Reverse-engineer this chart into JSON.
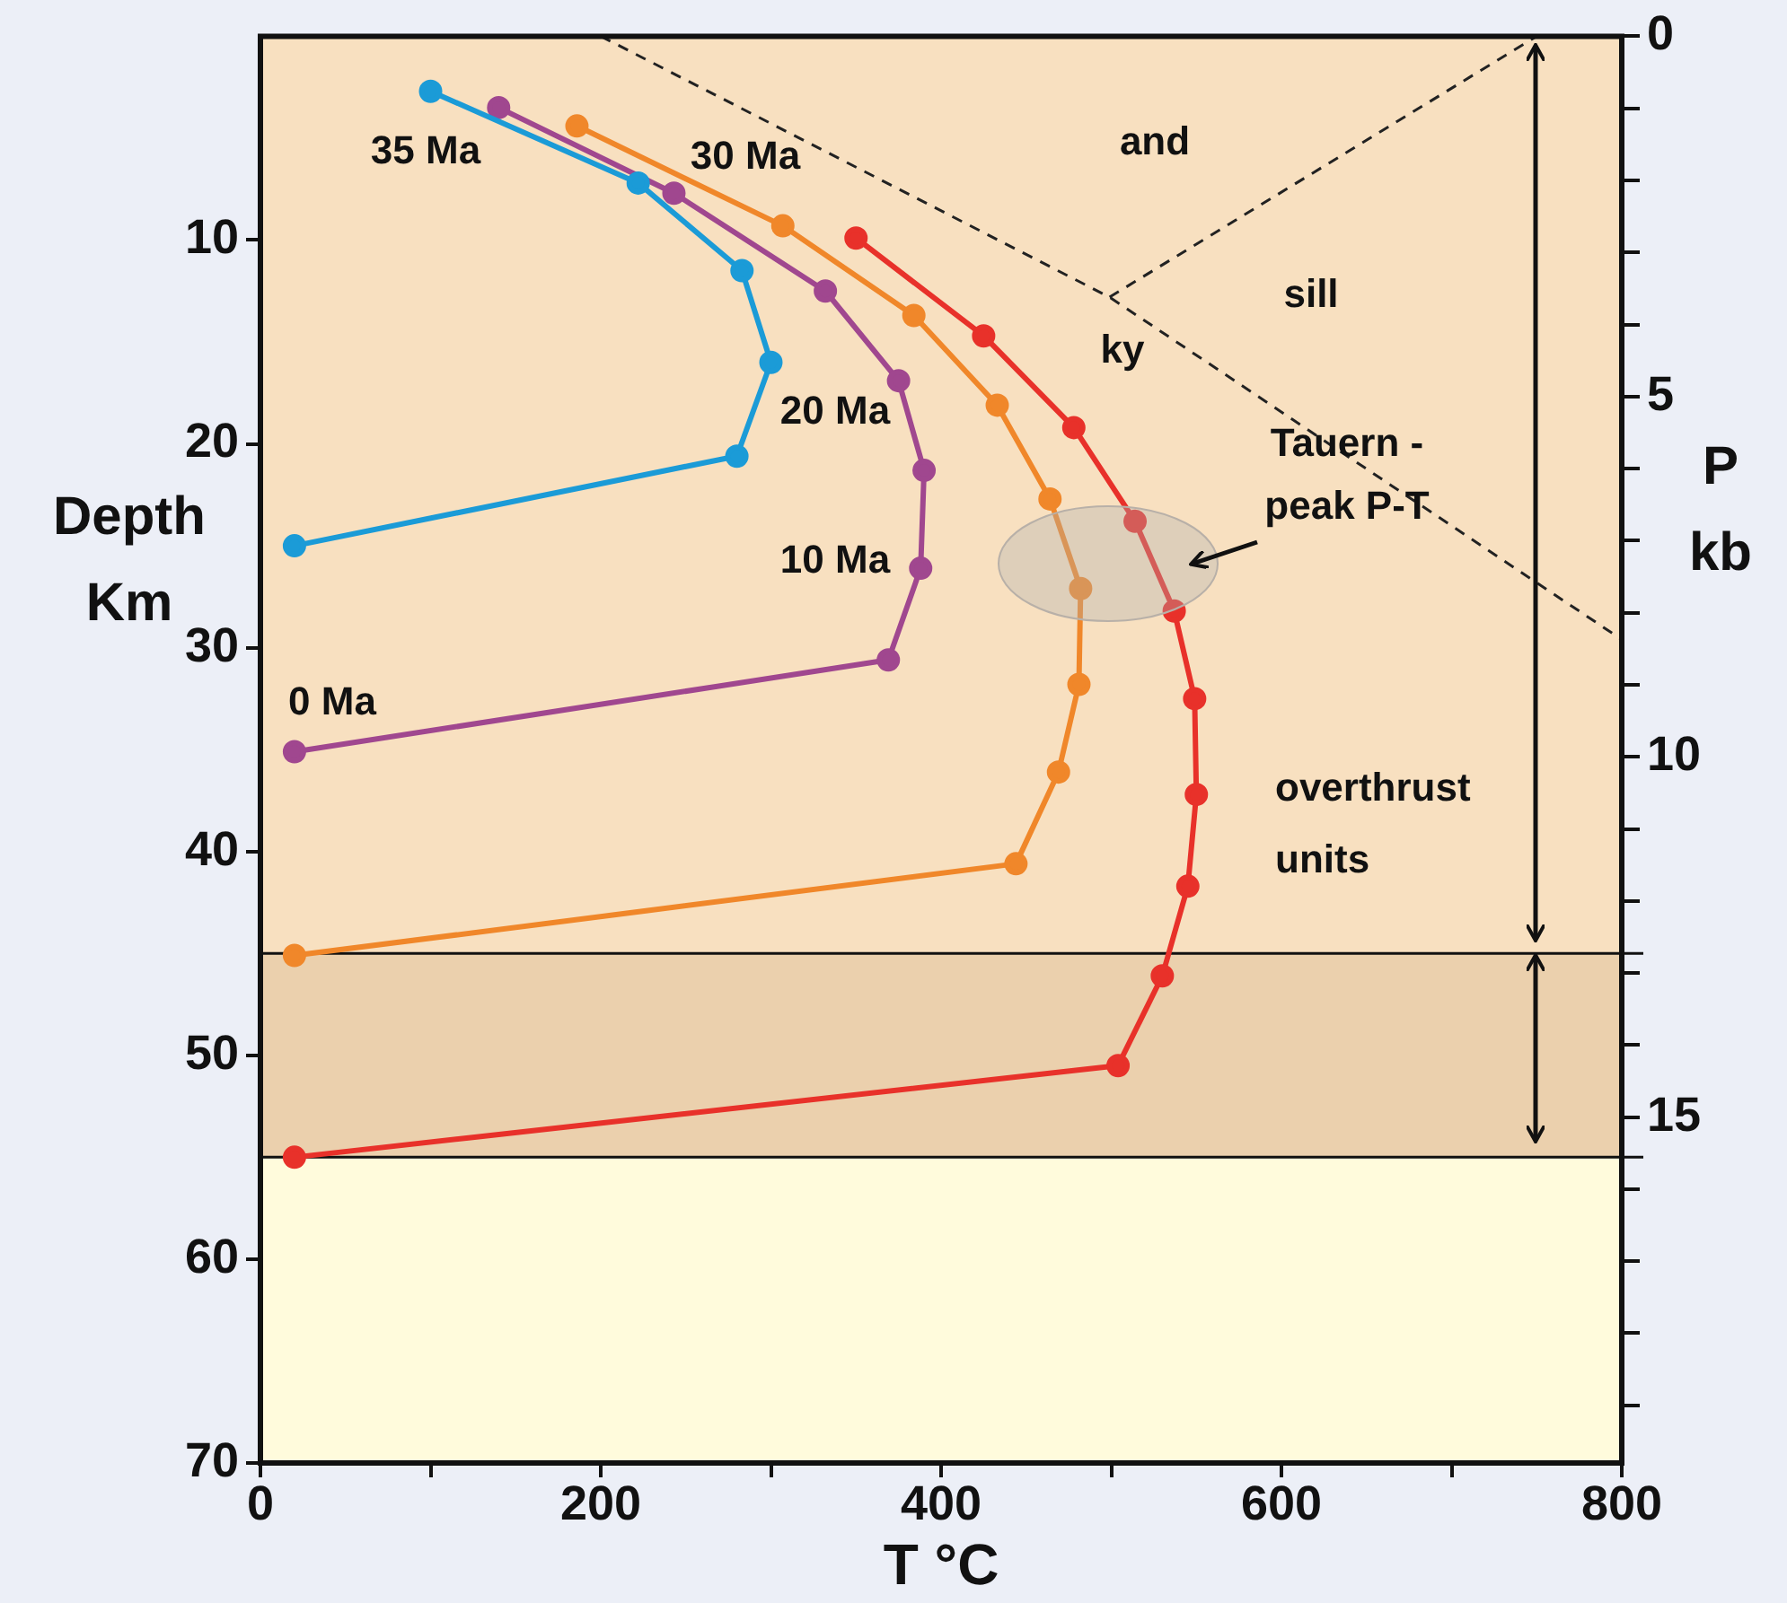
{
  "chart_data": {
    "type": "line",
    "xlabel": "T °C",
    "ylabel": "Depth Km",
    "y2label": "P kb",
    "xlim": [
      0,
      800
    ],
    "xticks": [
      0,
      {
        "value": 100,
        "label": null
      },
      200,
      {
        "value": 300,
        "label": null
      },
      400,
      {
        "value": 500,
        "label": null
      },
      600,
      {
        "value": 700,
        "label": null
      },
      800
    ],
    "ylim": [
      70,
      0
    ],
    "yticks": [
      10,
      20,
      30,
      40,
      50,
      60,
      70
    ],
    "y2lim": [
      19.8,
      0
    ],
    "y2ticks": [
      0,
      {
        "value": 1,
        "label": null
      },
      {
        "value": 2,
        "label": null
      },
      {
        "value": 3,
        "label": null
      },
      {
        "value": 4,
        "label": null
      },
      5,
      {
        "value": 6,
        "label": null
      },
      {
        "value": 7,
        "label": null
      },
      {
        "value": 8,
        "label": null
      },
      {
        "value": 9,
        "label": null
      },
      10,
      {
        "value": 11,
        "label": null
      },
      {
        "value": 12,
        "label": null
      },
      {
        "value": 13,
        "label": null
      },
      {
        "value": 14,
        "label": null
      },
      15,
      {
        "value": 16,
        "label": null
      },
      {
        "value": 17,
        "label": null
      },
      {
        "value": 18,
        "label": null
      },
      {
        "value": 19,
        "label": null
      }
    ],
    "legend": false,
    "marker": "circle",
    "line_style": "solid",
    "series": [
      {
        "color": "#1b9bd7",
        "x": [
          100,
          222,
          283,
          300,
          280,
          20
        ],
        "values": [
          2.7,
          7.2,
          11.5,
          16,
          20.6,
          25
        ]
      },
      {
        "color": "#a0478f",
        "x": [
          140,
          243,
          332,
          375,
          390,
          388,
          369,
          20
        ],
        "values": [
          3.5,
          7.7,
          12.5,
          16.9,
          21.3,
          26.1,
          30.6,
          35.1
        ]
      },
      {
        "color": "#f0872a",
        "x": [
          186,
          307,
          384,
          433,
          464,
          482,
          481,
          469,
          444,
          20
        ],
        "values": [
          4.4,
          9.3,
          13.7,
          18.1,
          22.7,
          27.1,
          31.8,
          36.1,
          40.6,
          45.1
        ]
      },
      {
        "color": "#e8312a",
        "x": [
          350,
          425,
          478,
          514,
          537,
          549,
          550,
          545,
          530,
          504,
          20
        ],
        "values": [
          9.9,
          14.7,
          19.2,
          23.8,
          28.2,
          32.5,
          37.2,
          41.7,
          46.1,
          50.5,
          55
        ]
      },
      {
        "color": "#222222",
        "marker": "none",
        "line_style": "dashed",
        "x": [
          200,
          499,
          800
        ],
        "values": [
          0,
          12.8,
          29.6
        ]
      },
      {
        "color": "#222222",
        "marker": "none",
        "line_style": "dashed",
        "x": [
          499,
          750
        ],
        "values": [
          12.8,
          0
        ]
      }
    ],
    "bands": [
      {
        "axis": "y",
        "from": 0,
        "to": 45,
        "color": "#f8e0c0"
      },
      {
        "axis": "y",
        "from": 45,
        "to": 55,
        "color": "#ebd0ad"
      },
      {
        "axis": "y",
        "from": 55,
        "to": 70,
        "color": "#fffbdc"
      }
    ],
    "ref_lines": [
      {
        "axis": "y",
        "value": 45,
        "color": "#111111"
      },
      {
        "axis": "y",
        "value": 55,
        "color": "#111111"
      }
    ],
    "annotations": [
      "35 Ma",
      "30 Ma",
      "20 Ma",
      "10 Ma",
      "0 Ma",
      "and",
      "sill",
      "ky",
      "Tauern -",
      "peak P-T",
      "overthrust",
      "units"
    ]
  }
}
